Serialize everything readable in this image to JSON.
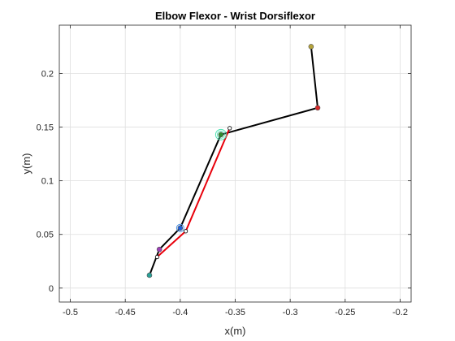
{
  "chart_data": {
    "type": "line",
    "title": "Elbow Flexor - Wrist Dorsiflexor",
    "xlabel": "x(m)",
    "ylabel": "y(m)",
    "xlim": [
      -0.51,
      -0.19
    ],
    "ylim": [
      -0.013,
      0.245
    ],
    "xticks": [
      -0.5,
      -0.45,
      -0.4,
      -0.35,
      -0.3,
      -0.25,
      -0.2
    ],
    "xtick_labels": [
      "-0.5",
      "-0.45",
      "-0.4",
      "-0.35",
      "-0.3",
      "-0.25",
      "-0.2"
    ],
    "yticks": [
      0,
      0.05,
      0.1,
      0.15,
      0.2
    ],
    "ytick_labels": [
      "0",
      "0.05",
      "0.1",
      "0.15",
      "0.2"
    ],
    "grid": true,
    "series": [
      {
        "color": "#000000",
        "x": [
          -0.428,
          -0.419,
          -0.4,
          -0.363,
          -0.275,
          -0.281
        ],
        "y": [
          0.012,
          0.036,
          0.056,
          0.143,
          0.168,
          0.225
        ]
      },
      {
        "color": "#e8000b",
        "x": [
          -0.421,
          -0.395,
          -0.355
        ],
        "y": [
          0.029,
          0.053,
          0.149
        ]
      }
    ],
    "markers": [
      {
        "x": -0.428,
        "y": 0.012,
        "color": "#2aa198",
        "shape": "dot"
      },
      {
        "x": -0.419,
        "y": 0.036,
        "color": "#9b3fb5",
        "shape": "dot"
      },
      {
        "x": -0.4,
        "y": 0.056,
        "color": "#1f5fd9",
        "shape": "dot"
      },
      {
        "x": -0.4,
        "y": 0.056,
        "color": "#4a90e2",
        "shape": "ring"
      },
      {
        "x": -0.363,
        "y": 0.143,
        "color": "#2e8b2e",
        "shape": "dot"
      },
      {
        "x": -0.363,
        "y": 0.143,
        "color": "#4fe3b3",
        "shape": "big-ring"
      },
      {
        "x": -0.275,
        "y": 0.168,
        "color": "#d62728",
        "shape": "dot"
      },
      {
        "x": -0.281,
        "y": 0.225,
        "color": "#b5a33a",
        "shape": "dot"
      },
      {
        "x": -0.421,
        "y": 0.029,
        "color": "#000000",
        "shape": "open"
      },
      {
        "x": -0.395,
        "y": 0.053,
        "color": "#000000",
        "shape": "open"
      },
      {
        "x": -0.355,
        "y": 0.149,
        "color": "#000000",
        "shape": "open"
      }
    ]
  }
}
